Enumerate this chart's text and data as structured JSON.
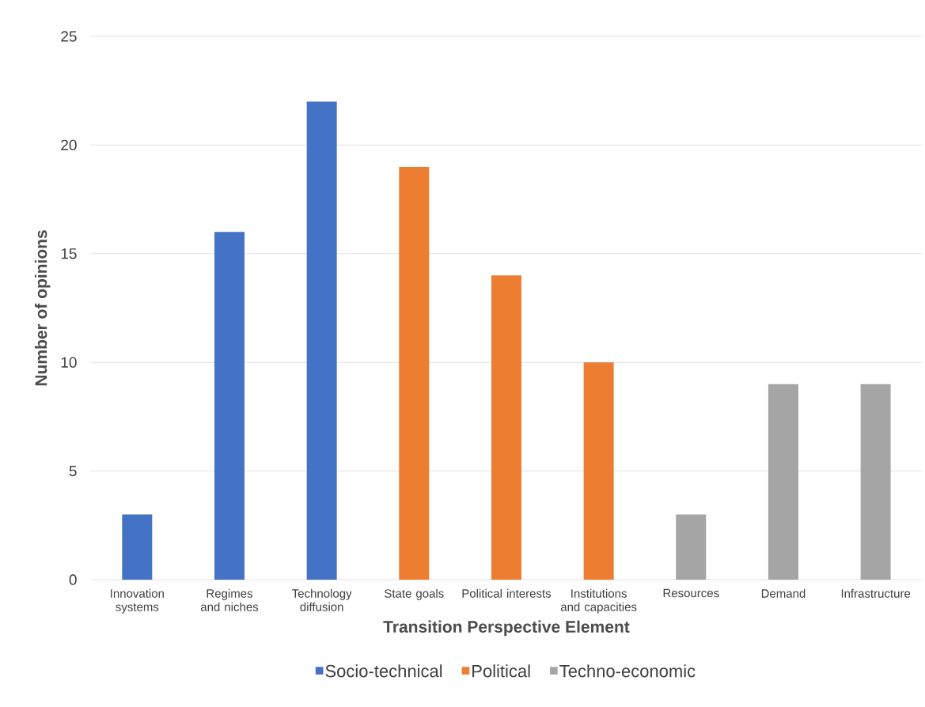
{
  "chart_data": {
    "type": "bar",
    "categories": [
      "Innovation systems",
      "Regimes and niches",
      "Technology diffusion",
      "State goals",
      "Political interests",
      "Institutions and capacities",
      "Resources",
      "Demand",
      "Infrastructure"
    ],
    "series": [
      {
        "name": "Socio-technical",
        "color": "#4472c4",
        "values": [
          3,
          16,
          22,
          null,
          null,
          null,
          null,
          null,
          null
        ]
      },
      {
        "name": "Political",
        "color": "#ed7d31",
        "values": [
          null,
          null,
          null,
          19,
          14,
          10,
          null,
          null,
          null
        ]
      },
      {
        "name": "Techno-economic",
        "color": "#a5a5a5",
        "values": [
          null,
          null,
          null,
          null,
          null,
          null,
          3,
          9,
          9
        ]
      }
    ],
    "xlabel": "Transition Perspective Element",
    "ylabel": "Number of opinions",
    "ylim": [
      0,
      25
    ],
    "yticks": [
      0,
      5,
      10,
      15,
      20,
      25
    ],
    "grid": "y",
    "legend": "bottom"
  }
}
